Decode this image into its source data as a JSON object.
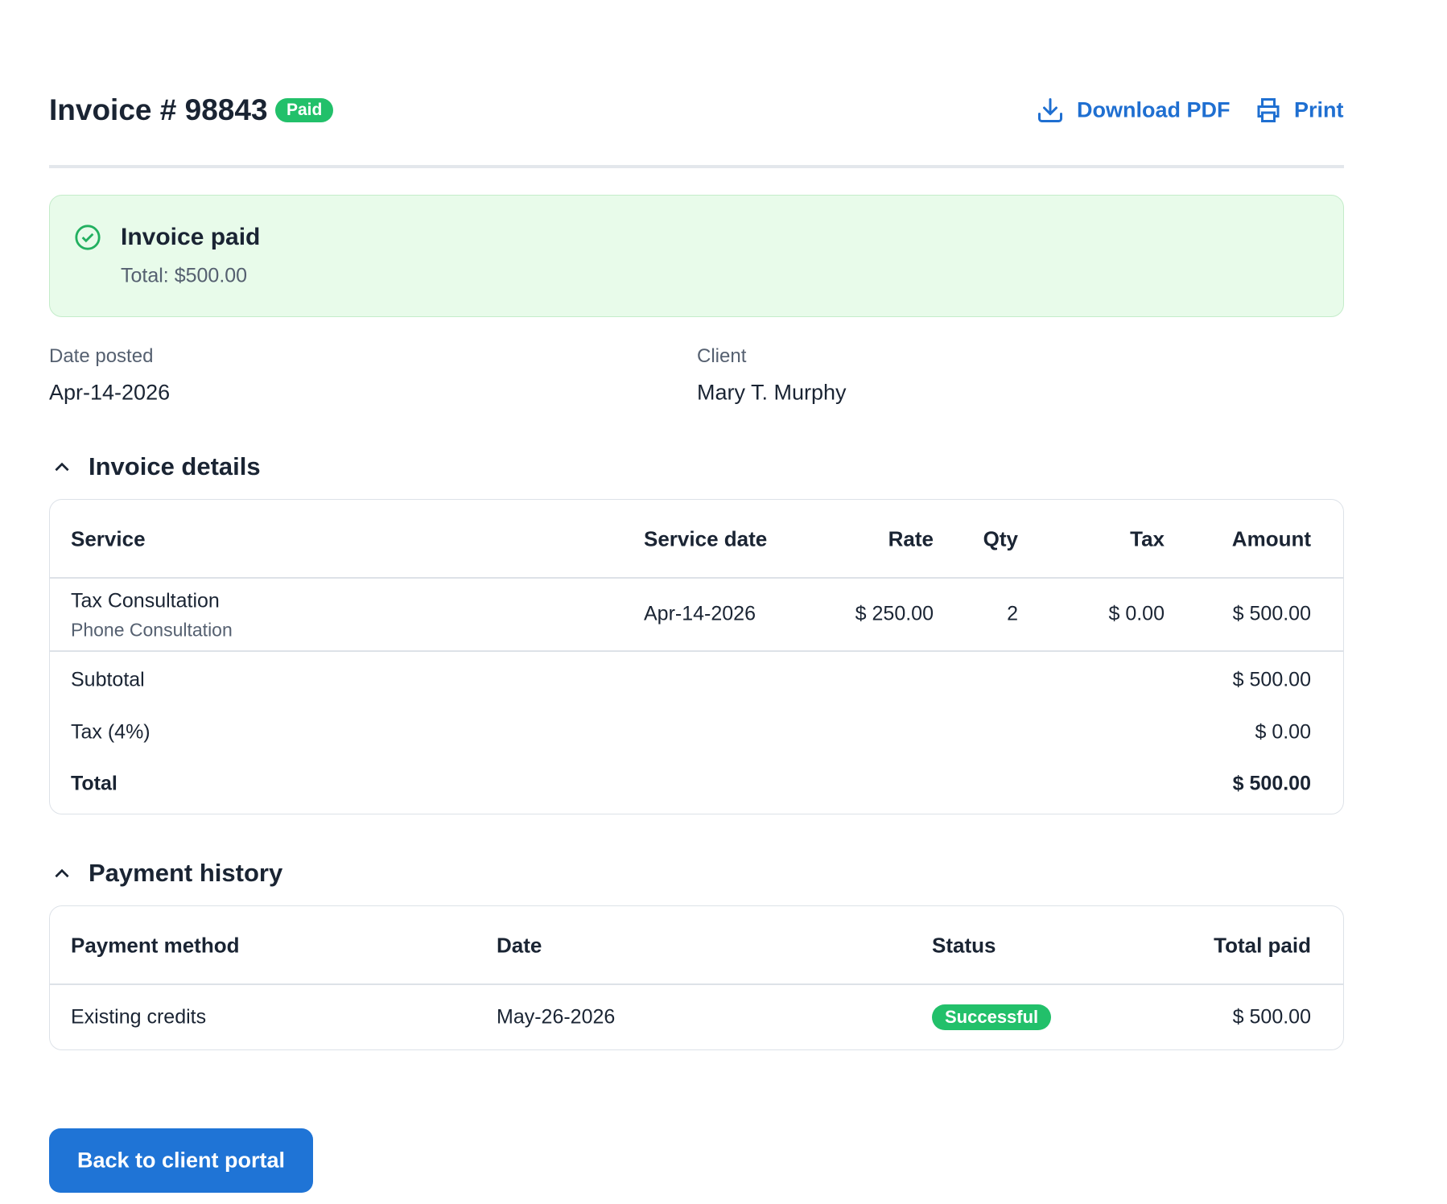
{
  "header": {
    "title": "Invoice # 98843",
    "badge": "Paid",
    "actions": [
      "Download PDF",
      "Print"
    ]
  },
  "notice": {
    "title": "Invoice paid",
    "total": "Total: $500.00"
  },
  "meta": [
    {
      "label": "Date posted",
      "value": "Apr-14-2026"
    },
    {
      "label": "Client",
      "value": "Mary T. Murphy"
    }
  ],
  "invoice_details": {
    "heading": "Invoice details",
    "columns": [
      "Service",
      "Service date",
      "Rate",
      "Qty",
      "Tax",
      "Amount"
    ],
    "rows": [
      {
        "service": "Tax Consultation",
        "description": "Phone Consultation",
        "service_date": "Apr-14-2026",
        "rate": "$ 250.00",
        "qty": "2",
        "tax": "$ 0.00",
        "amount": "$ 500.00"
      }
    ],
    "summary": [
      {
        "label": "Subtotal",
        "value": "$ 500.00"
      },
      {
        "label": "Tax (4%)",
        "value": "$ 0.00"
      },
      {
        "label": "Total",
        "value": "$ 500.00"
      }
    ]
  },
  "payment_history": {
    "heading": "Payment history",
    "columns": [
      "Payment method",
      "Date",
      "Status",
      "Total paid"
    ],
    "rows": [
      {
        "method": "Existing credits",
        "date": "May-26-2026",
        "status": "Successful",
        "total_paid": "$ 500.00"
      }
    ]
  },
  "back_button": "Back to client portal"
}
